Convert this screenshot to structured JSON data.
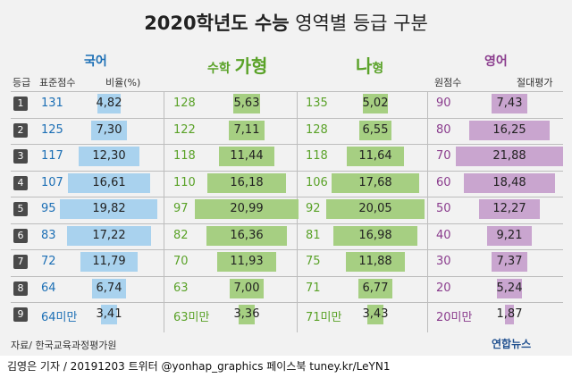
{
  "title": {
    "bold": "2020학년도 수능",
    "rest": " 영역별 등급 구분"
  },
  "sections": {
    "korean": {
      "label": "국어",
      "color": "#1c6fb5"
    },
    "math_ga": {
      "label_small": "수학 ",
      "label_big": "가형",
      "color": "#5aa228"
    },
    "math_na": {
      "label_big": "나",
      "label_small": "형",
      "color": "#5aa228"
    },
    "english": {
      "label": "영어",
      "color": "#8a3c8d"
    }
  },
  "column_headers": {
    "grade": "등급",
    "std_score": "표준점수",
    "ratio": "비율(%)",
    "raw_score": "원점수",
    "absolute": "절대평가"
  },
  "colors": {
    "korean_bar": "#a9d2ee",
    "korean_text": "#1c6fb5",
    "math_bar": "#a6cf82",
    "math_text": "#5aa228",
    "english_bar": "#c9a5cf",
    "english_text": "#8a3c8d"
  },
  "chart_data": {
    "type": "table",
    "title": "2020학년도 수능 영역별 등급 구분",
    "grades": [
      "1",
      "2",
      "3",
      "4",
      "5",
      "6",
      "7",
      "8",
      "9"
    ],
    "korean": {
      "std_score": [
        "131",
        "125",
        "117",
        "107",
        "95",
        "83",
        "72",
        "64",
        "64미만"
      ],
      "ratio": [
        4.82,
        7.3,
        12.3,
        16.61,
        19.82,
        17.22,
        11.79,
        6.74,
        3.41
      ]
    },
    "math_ga": {
      "std_score": [
        "128",
        "122",
        "118",
        "110",
        "97",
        "82",
        "70",
        "63",
        "63미만"
      ],
      "ratio": [
        5.63,
        7.11,
        11.44,
        16.18,
        20.99,
        16.36,
        11.93,
        7.0,
        3.36
      ]
    },
    "math_na": {
      "std_score": [
        "135",
        "128",
        "118",
        "106",
        "92",
        "81",
        "75",
        "71",
        "71미만"
      ],
      "ratio": [
        5.02,
        6.55,
        11.64,
        17.68,
        20.05,
        16.98,
        11.88,
        6.77,
        3.43
      ]
    },
    "english": {
      "raw_score": [
        "90",
        "80",
        "70",
        "60",
        "50",
        "40",
        "30",
        "20",
        "20미만"
      ],
      "ratio": [
        7.43,
        16.25,
        21.88,
        18.48,
        12.27,
        9.21,
        7.37,
        5.24,
        1.87
      ]
    }
  },
  "source": "자료/ 한국교육과정평가원",
  "logo": "연합뉴스",
  "footer": "김영은 기자 / 20191203  트위터 @yonhap_graphics  페이스북 tuney.kr/LeYN1"
}
